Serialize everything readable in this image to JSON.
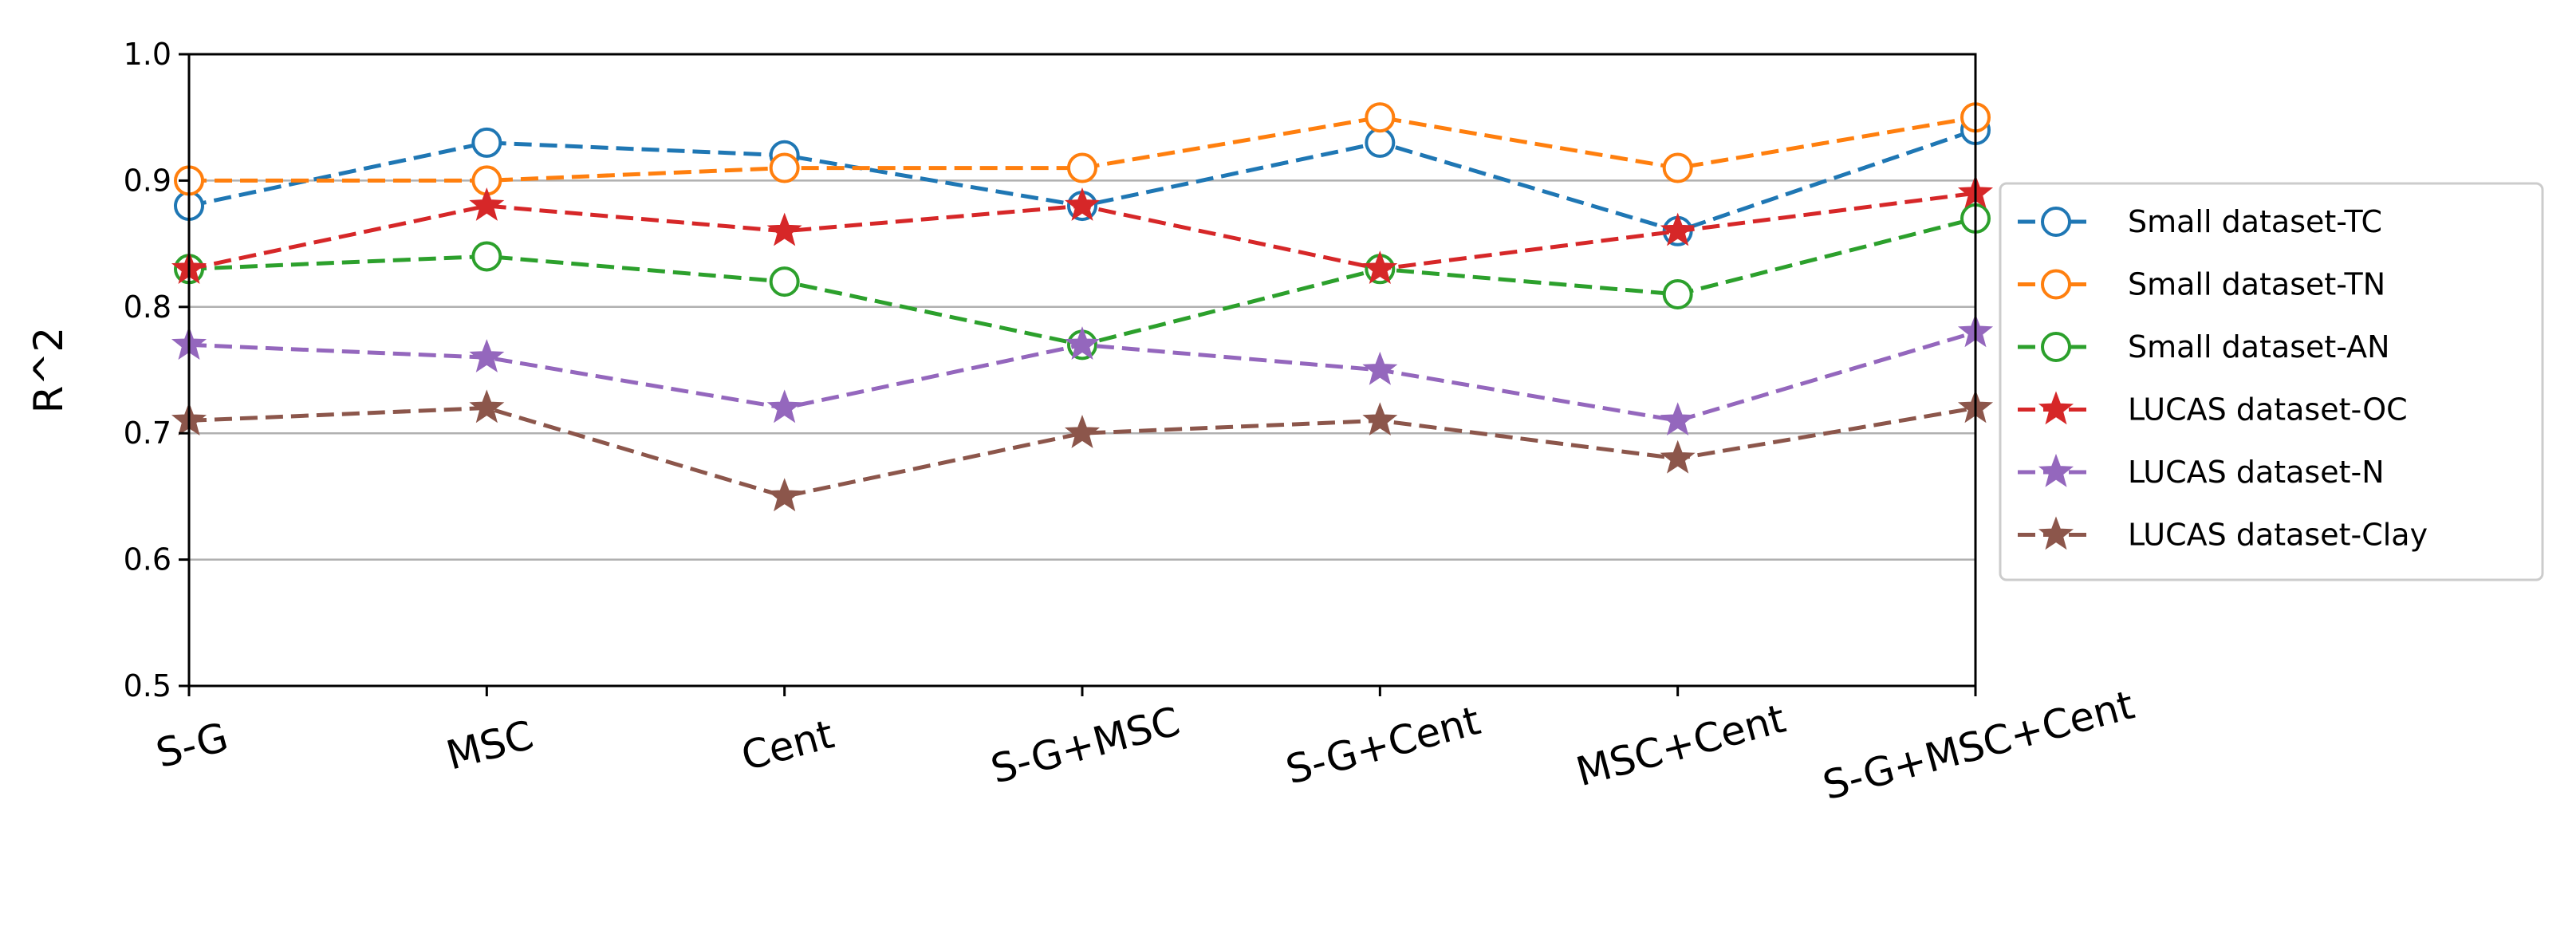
{
  "chart_data": {
    "type": "line",
    "title": "",
    "xlabel": "",
    "ylabel": "R^2",
    "ylim": [
      0.5,
      1.0
    ],
    "yticks": [
      "0.5",
      "0.6",
      "0.7",
      "0.8",
      "0.9",
      "1.0"
    ],
    "grid": "horizontal",
    "legend_position": "outside-right",
    "categories": [
      "S-G",
      "MSC",
      "Cent",
      "S-G+MSC",
      "S-G+Cent",
      "MSC+Cent",
      "S-G+MSC+Cent"
    ],
    "series": [
      {
        "name": "Small dataset-TC",
        "marker": "circle-open",
        "color": "#1f77b4",
        "values": [
          0.88,
          0.93,
          0.92,
          0.88,
          0.93,
          0.86,
          0.94
        ]
      },
      {
        "name": "Small dataset-TN",
        "marker": "circle-open",
        "color": "#ff7f0e",
        "values": [
          0.9,
          0.9,
          0.91,
          0.91,
          0.95,
          0.91,
          0.95
        ]
      },
      {
        "name": "Small dataset-AN",
        "marker": "circle-open",
        "color": "#2ca02c",
        "values": [
          0.83,
          0.84,
          0.82,
          0.77,
          0.83,
          0.81,
          0.87
        ]
      },
      {
        "name": "LUCAS dataset-OC",
        "marker": "star",
        "color": "#d62728",
        "values": [
          0.83,
          0.88,
          0.86,
          0.88,
          0.83,
          0.86,
          0.89
        ]
      },
      {
        "name": "LUCAS dataset-N",
        "marker": "star",
        "color": "#9467bd",
        "values": [
          0.77,
          0.76,
          0.72,
          0.77,
          0.75,
          0.71,
          0.78
        ]
      },
      {
        "name": "LUCAS dataset-Clay",
        "marker": "star",
        "color": "#8c564b",
        "values": [
          0.71,
          0.72,
          0.65,
          0.7,
          0.71,
          0.68,
          0.72
        ]
      }
    ]
  }
}
